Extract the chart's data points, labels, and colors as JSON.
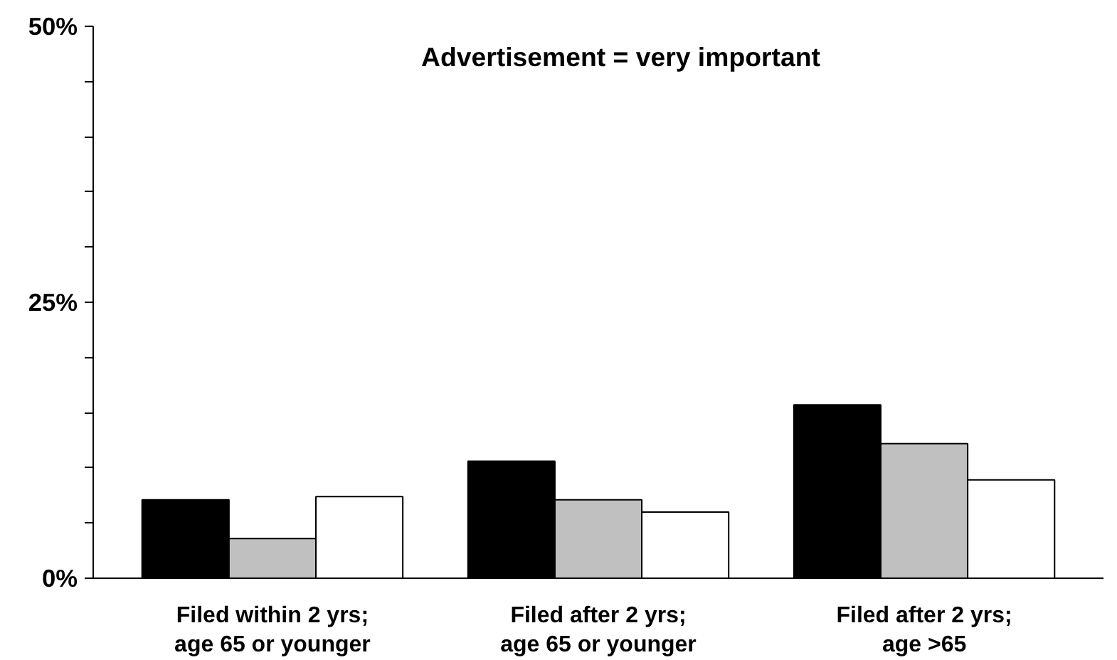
{
  "chart_data": {
    "type": "bar",
    "title": "Advertisement = very important",
    "categories": [
      "Filed within 2 yrs;\nage 65 or younger",
      "Filed after 2 yrs;\nage 65 or younger",
      "Filed after 2 yrs;\nage >65"
    ],
    "series": [
      {
        "color": "#000000",
        "values": [
          7.1,
          10.6,
          15.7
        ]
      },
      {
        "color": "#c0c0c0",
        "values": [
          3.6,
          7.1,
          12.2
        ]
      },
      {
        "color": "#ffffff",
        "values": [
          7.4,
          6.0,
          8.9
        ]
      }
    ],
    "ylim": [
      0,
      50
    ],
    "yticks": [
      {
        "value": 0,
        "label": "0%"
      },
      {
        "value": 5,
        "label": null
      },
      {
        "value": 10,
        "label": null
      },
      {
        "value": 15,
        "label": null
      },
      {
        "value": 20,
        "label": null
      },
      {
        "value": 25,
        "label": "25%"
      },
      {
        "value": 30,
        "label": null
      },
      {
        "value": 35,
        "label": null
      },
      {
        "value": 40,
        "label": null
      },
      {
        "value": 45,
        "label": null
      },
      {
        "value": 50,
        "label": "50%"
      }
    ],
    "grid": false
  }
}
